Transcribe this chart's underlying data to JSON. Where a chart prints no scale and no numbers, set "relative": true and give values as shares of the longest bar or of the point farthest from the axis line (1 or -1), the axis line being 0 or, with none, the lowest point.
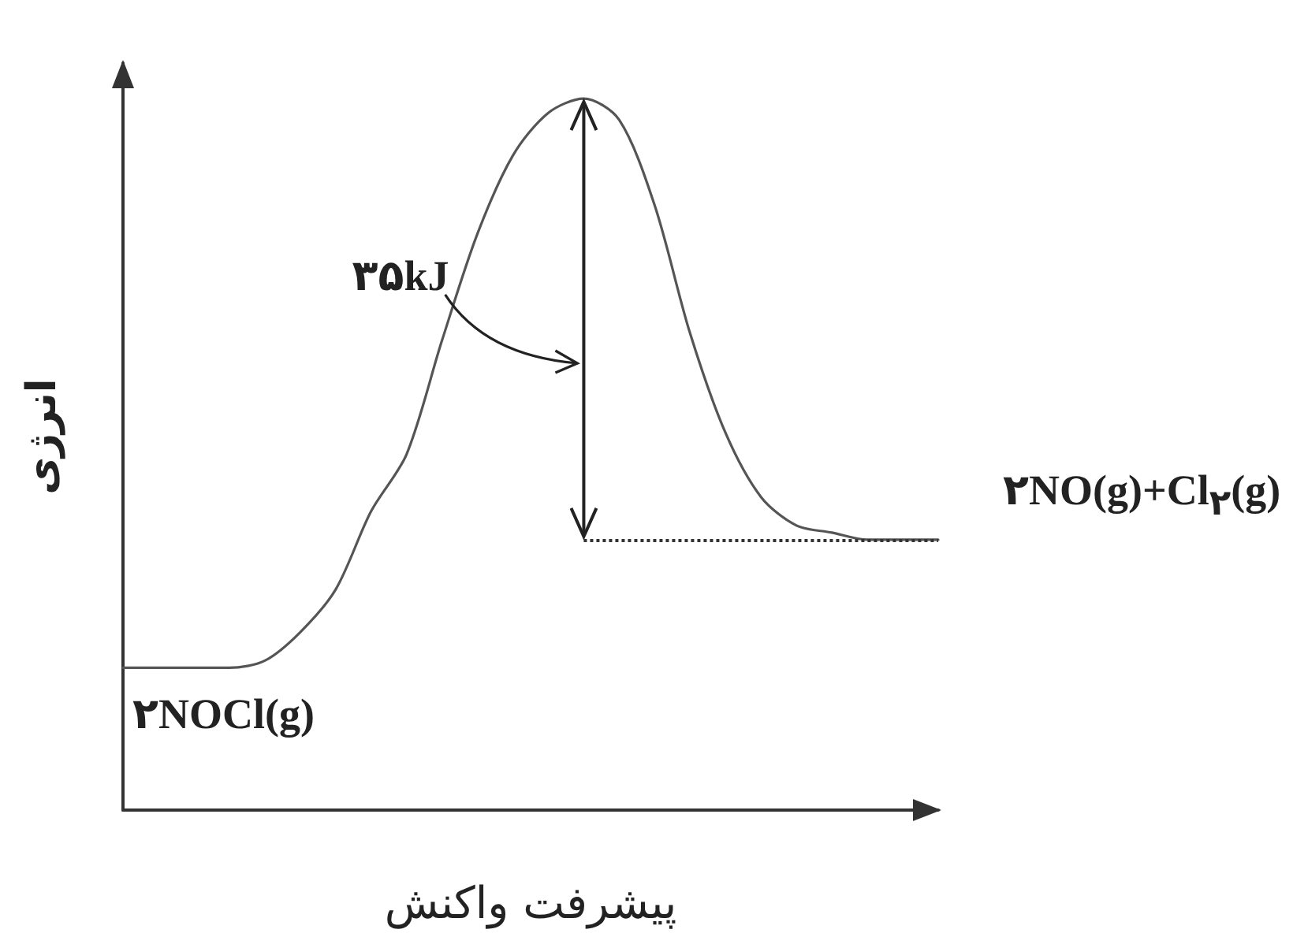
{
  "chart_data": {
    "type": "line",
    "relative": true,
    "xlabel": "پیشرفت واکنش",
    "ylabel": "انرژی",
    "categories": [
      null,
      null,
      null,
      null,
      null,
      null,
      null,
      null,
      null,
      null,
      null,
      null,
      null,
      null,
      null,
      null,
      null,
      null,
      null,
      null,
      null,
      null,
      null,
      null
    ],
    "series": [
      {
        "color": "#555555",
        "values": [
          0.2,
          0.2,
          0.2,
          0.2,
          0.21,
          0.25,
          0.31,
          0.42,
          0.5,
          0.66,
          0.81,
          0.92,
          0.98,
          1,
          0.97,
          0.85,
          0.67,
          0.53,
          0.44,
          0.4,
          0.39,
          0.38,
          0.38,
          0.38
        ]
      }
    ],
    "ref_lines": [
      {
        "axis": "y",
        "value": 0.38,
        "line_style": "dotted",
        "color": "#333333"
      }
    ],
    "annotations": [
      "۳۵kJ",
      "۲NOCl(g)",
      "۲NO(g)+Cl$_{۲}$(g)"
    ],
    "marker": "none",
    "line_style": "solid",
    "grid": false
  }
}
